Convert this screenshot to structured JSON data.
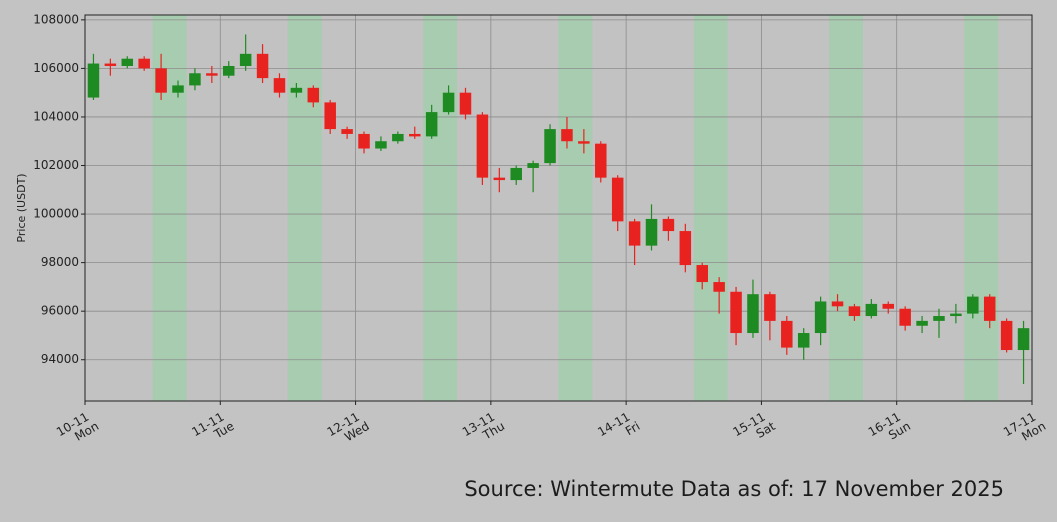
{
  "chart_data": {
    "type": "candlestick",
    "y_label": "Price (USDT)",
    "footer": "Source: Wintermute  Data as of: 17 November 2025",
    "up_color": "#1e8a22",
    "down_color": "#e8231f",
    "shade_color": "#9fcfaa",
    "grid": true,
    "xlim": [
      0,
      7
    ],
    "xticks": [
      {
        "value": 0,
        "label": "10-11"
      },
      {
        "value": 1,
        "label": "11-11"
      },
      {
        "value": 2,
        "label": "12-11"
      },
      {
        "value": 3,
        "label": "13-11"
      },
      {
        "value": 4,
        "label": "14-11"
      },
      {
        "value": 5,
        "label": "15-11"
      },
      {
        "value": 6,
        "label": "16-11"
      },
      {
        "value": 7,
        "label": "17-11"
      }
    ],
    "weekdays": [
      "Mon",
      "Tue",
      "Wed",
      "Thu",
      "Fri",
      "Sat",
      "Sun",
      "Mon"
    ],
    "shaded": [
      [
        0.5,
        0.75
      ],
      [
        1.5,
        1.75
      ],
      [
        2.5,
        2.75
      ],
      [
        3.5,
        3.75
      ],
      [
        4.5,
        4.75
      ],
      [
        5.5,
        5.75
      ],
      [
        6.5,
        6.75
      ]
    ],
    "ylim": [
      92300,
      108200
    ],
    "yticks": [
      94000,
      96000,
      98000,
      100000,
      102000,
      104000,
      106000,
      108000
    ],
    "x": [
      0.0625,
      0.1875,
      0.3125,
      0.4375,
      0.5625,
      0.6875,
      0.8125,
      0.9375,
      1.0625,
      1.1875,
      1.3125,
      1.4375,
      1.5625,
      1.6875,
      1.8125,
      1.9375,
      2.0625,
      2.1875,
      2.3125,
      2.4375,
      2.5625,
      2.6875,
      2.8125,
      2.9375,
      3.0625,
      3.1875,
      3.3125,
      3.4375,
      3.5625,
      3.6875,
      3.8125,
      3.9375,
      4.0625,
      4.1875,
      4.3125,
      4.4375,
      4.5625,
      4.6875,
      4.8125,
      4.9375,
      5.0625,
      5.1875,
      5.3125,
      5.4375,
      5.5625,
      5.6875,
      5.8125,
      5.9375,
      6.0625,
      6.1875,
      6.3125,
      6.4375,
      6.5625,
      6.6875,
      6.8125,
      6.9375
    ],
    "open": [
      104800,
      106200,
      106100,
      106400,
      106000,
      105000,
      105300,
      105800,
      105700,
      106100,
      106600,
      105600,
      105000,
      105200,
      104600,
      103500,
      103300,
      102700,
      103000,
      103300,
      103200,
      104200,
      105000,
      104100,
      101500,
      101400,
      101900,
      102100,
      103500,
      103000,
      102900,
      101500,
      99700,
      98700,
      99800,
      99300,
      97900,
      97200,
      96800,
      95100,
      96700,
      95600,
      94500,
      95100,
      96400,
      96200,
      95800,
      96300,
      96100,
      95400,
      95600,
      95800,
      95900,
      96600,
      95600,
      94400
    ],
    "high": [
      106600,
      106400,
      106500,
      106500,
      106600,
      105500,
      106000,
      106100,
      106300,
      107400,
      107000,
      105800,
      105400,
      105300,
      104700,
      103600,
      103400,
      103200,
      103400,
      103600,
      104500,
      105300,
      105200,
      104200,
      101900,
      102000,
      102200,
      103700,
      104000,
      103500,
      103000,
      101600,
      99800,
      100400,
      99900,
      99600,
      98000,
      97400,
      97000,
      97300,
      96800,
      95800,
      95300,
      96600,
      96700,
      96300,
      96500,
      96400,
      96200,
      95800,
      96100,
      96300,
      96700,
      96700,
      95700,
      95600
    ],
    "low": [
      104700,
      105700,
      106000,
      105900,
      104700,
      104800,
      105100,
      105400,
      105600,
      105900,
      105400,
      104800,
      104800,
      104400,
      103300,
      103100,
      102500,
      102600,
      102900,
      103100,
      103100,
      104100,
      103900,
      101200,
      100900,
      101200,
      100900,
      102000,
      102700,
      102500,
      101300,
      99300,
      97900,
      98500,
      98900,
      97600,
      96900,
      95900,
      94600,
      94900,
      94800,
      94200,
      94000,
      94600,
      96000,
      95600,
      95700,
      95900,
      95200,
      95100,
      94900,
      95500,
      95700,
      95300,
      94300,
      93000
    ],
    "close": [
      106200,
      106100,
      106400,
      106000,
      105000,
      105300,
      105800,
      105700,
      106100,
      106600,
      105600,
      105000,
      105200,
      104600,
      103500,
      103300,
      102700,
      103000,
      103300,
      103200,
      104200,
      105000,
      104100,
      101500,
      101400,
      101900,
      102100,
      103500,
      103000,
      102900,
      101500,
      99700,
      98700,
      99800,
      99300,
      97900,
      97200,
      96800,
      95100,
      96700,
      95600,
      94500,
      95100,
      96400,
      96200,
      95800,
      96300,
      96100,
      95400,
      95600,
      95800,
      95900,
      96600,
      95600,
      94400,
      95300
    ]
  }
}
